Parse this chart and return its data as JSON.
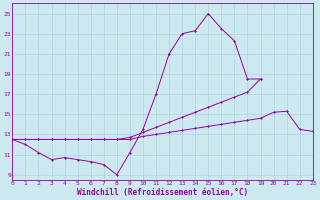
{
  "xlabel": "Windchill (Refroidissement éolien,°C)",
  "bg_color": "#cce9f0",
  "grid_color": "#b0d5de",
  "line_color": "#990099",
  "xlim": [
    0,
    23
  ],
  "ylim": [
    8.5,
    26.0
  ],
  "xticks": [
    0,
    1,
    2,
    3,
    4,
    5,
    6,
    7,
    8,
    9,
    10,
    11,
    12,
    13,
    14,
    15,
    16,
    17,
    18,
    19,
    20,
    21,
    22,
    23
  ],
  "yticks": [
    9,
    11,
    13,
    15,
    17,
    19,
    21,
    23,
    25
  ],
  "line1_x": [
    0,
    1,
    2,
    3,
    4,
    5,
    6,
    7,
    8,
    9,
    10,
    11,
    12,
    13,
    14,
    15,
    16,
    17,
    18,
    19
  ],
  "line1_y": [
    12.5,
    12.0,
    11.2,
    10.5,
    10.7,
    10.5,
    10.3,
    10.0,
    9.0,
    11.2,
    13.5,
    17.0,
    21.0,
    23.0,
    23.3,
    25.0,
    23.5,
    22.3,
    18.5,
    18.5
  ],
  "line2_x": [
    0,
    1,
    2,
    3,
    4,
    5,
    6,
    7,
    8,
    9,
    10,
    11,
    12,
    13,
    14,
    15,
    16,
    17,
    18,
    19
  ],
  "line2_y": [
    12.5,
    12.5,
    12.5,
    12.5,
    12.5,
    12.5,
    12.5,
    12.5,
    12.5,
    12.7,
    13.2,
    13.7,
    14.2,
    14.7,
    15.2,
    15.7,
    16.2,
    16.7,
    17.2,
    18.5
  ],
  "line3_x": [
    0,
    1,
    2,
    3,
    4,
    5,
    6,
    7,
    8,
    9,
    10,
    11,
    12,
    13,
    14,
    15,
    16,
    17,
    18,
    19,
    20,
    21,
    22,
    23
  ],
  "line3_y": [
    12.5,
    12.5,
    12.5,
    12.5,
    12.5,
    12.5,
    12.5,
    12.5,
    12.5,
    12.5,
    12.8,
    13.0,
    13.2,
    13.4,
    13.6,
    13.8,
    14.0,
    14.2,
    14.4,
    14.6,
    15.2,
    15.3,
    13.5,
    13.3
  ]
}
